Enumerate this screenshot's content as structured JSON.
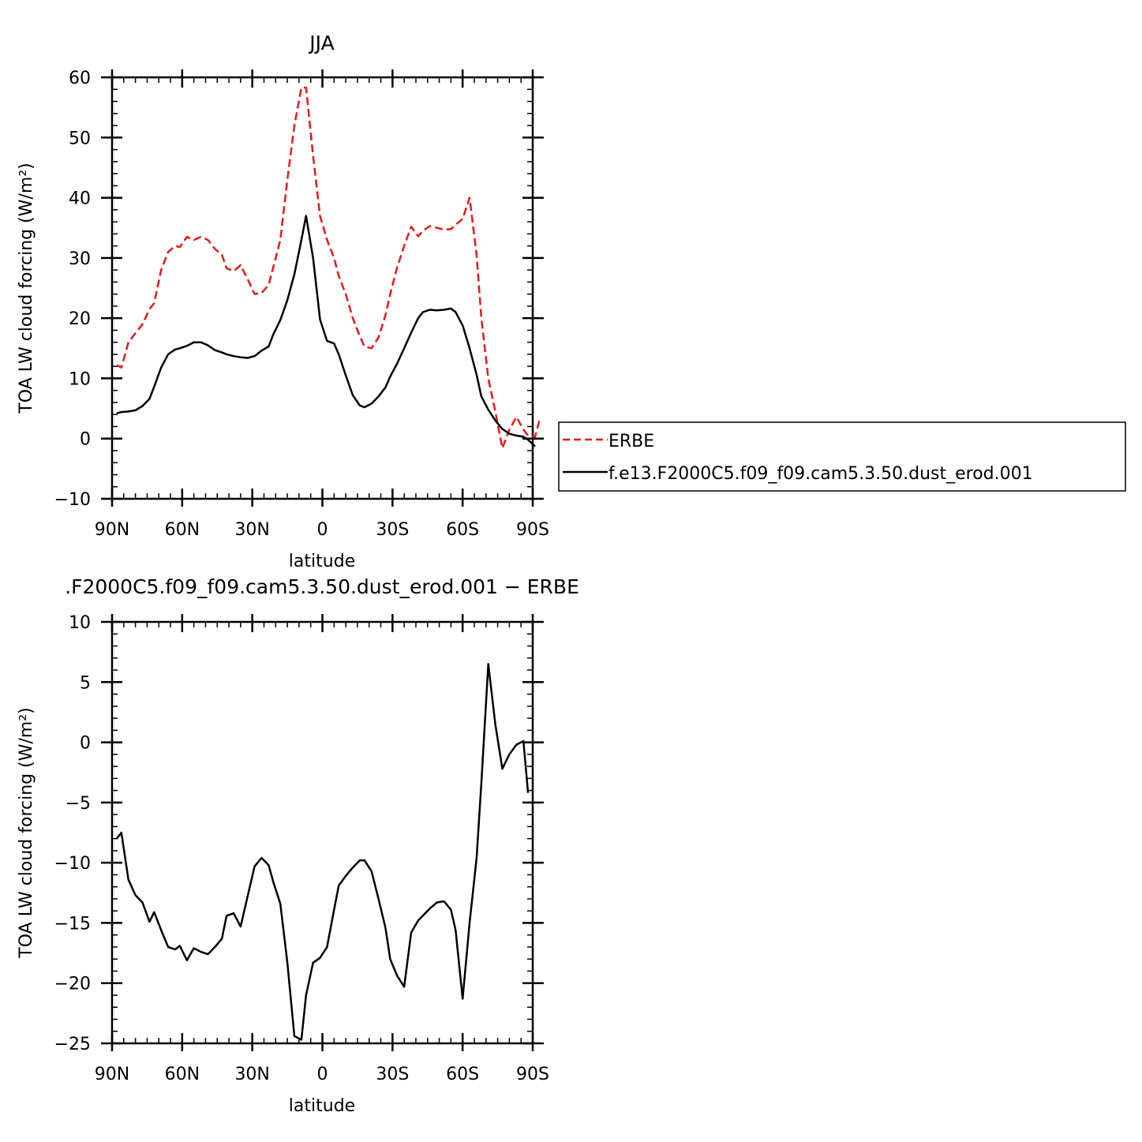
{
  "chart_data": [
    {
      "type": "line",
      "title": "JJA",
      "xlabel": "latitude",
      "ylabel": "TOA LW cloud forcing (W/m²)",
      "xlim": [
        90,
        -90
      ],
      "ylim": [
        -10,
        60
      ],
      "x_ticks": [
        {
          "value": 90,
          "label": "90N"
        },
        {
          "value": 60,
          "label": "60N"
        },
        {
          "value": 30,
          "label": "30N"
        },
        {
          "value": 0,
          "label": "0"
        },
        {
          "value": -30,
          "label": "30S"
        },
        {
          "value": -60,
          "label": "60S"
        },
        {
          "value": -90,
          "label": "90S"
        }
      ],
      "y_ticks": [
        -10,
        0,
        10,
        20,
        30,
        40,
        50,
        60
      ],
      "y_tick_labels": [
        "−10",
        "0",
        "10",
        "20",
        "30",
        "40",
        "50",
        "60"
      ],
      "legend": "right, outside",
      "grid": false,
      "series": [
        {
          "name": "ERBE",
          "color": "#e41a1c",
          "dash": "dashed",
          "points": [
            [
              88,
              12.2
            ],
            [
              86,
              11.8
            ],
            [
              83,
              16.0
            ],
            [
              80,
              17.5
            ],
            [
              77,
              19.0
            ],
            [
              74,
              21.5
            ],
            [
              72,
              22.5
            ],
            [
              69,
              28.0
            ],
            [
              66,
              31.0
            ],
            [
              63,
              32.0
            ],
            [
              61,
              31.8
            ],
            [
              58,
              33.5
            ],
            [
              55,
              33.0
            ],
            [
              52,
              33.5
            ],
            [
              49,
              33.0
            ],
            [
              46,
              31.5
            ],
            [
              43,
              30.5
            ],
            [
              41,
              28.3
            ],
            [
              38,
              27.8
            ],
            [
              35,
              28.8
            ],
            [
              32,
              26.5
            ],
            [
              29,
              24.0
            ],
            [
              26,
              24.2
            ],
            [
              23,
              25.5
            ],
            [
              21,
              28.5
            ],
            [
              18,
              33.0
            ],
            [
              15,
              43.0
            ],
            [
              12,
              52.0
            ],
            [
              9,
              58.3
            ],
            [
              7,
              58.3
            ],
            [
              4,
              47.0
            ],
            [
              1,
              37.0
            ],
            [
              -2,
              33.0
            ],
            [
              -5,
              30.0
            ],
            [
              -7,
              27.0
            ],
            [
              -10,
              24.0
            ],
            [
              -13,
              20.0
            ],
            [
              -16,
              17.0
            ],
            [
              -18,
              15.3
            ],
            [
              -21,
              15.0
            ],
            [
              -24,
              16.8
            ],
            [
              -27,
              20.5
            ],
            [
              -29,
              24.0
            ],
            [
              -32,
              28.5
            ],
            [
              -35,
              32.0
            ],
            [
              -38,
              35.2
            ],
            [
              -41,
              33.6
            ],
            [
              -43,
              34.5
            ],
            [
              -46,
              35.3
            ],
            [
              -49,
              35.0
            ],
            [
              -52,
              34.7
            ],
            [
              -55,
              34.8
            ],
            [
              -57,
              35.5
            ],
            [
              -60,
              36.5
            ],
            [
              -63,
              40.0
            ],
            [
              -66,
              30.5
            ],
            [
              -68,
              20.0
            ],
            [
              -71,
              10.0
            ],
            [
              -74,
              4.5
            ],
            [
              -77,
              -1.6
            ],
            [
              -80,
              1.5
            ],
            [
              -83,
              3.6
            ],
            [
              -86,
              1.5
            ],
            [
              -88,
              0.5
            ],
            [
              -91,
              0.3
            ],
            [
              -93,
              3.2
            ]
          ]
        },
        {
          "name": "f.e13.F2000C5.f09_f09.cam5.3.50.dust_erod.001",
          "color": "#000000",
          "dash": "solid",
          "points": [
            [
              88,
              4.2
            ],
            [
              86,
              4.4
            ],
            [
              83,
              4.5
            ],
            [
              80,
              4.7
            ],
            [
              77,
              5.4
            ],
            [
              74,
              6.6
            ],
            [
              72,
              8.6
            ],
            [
              69,
              11.8
            ],
            [
              66,
              14.0
            ],
            [
              63,
              14.8
            ],
            [
              61,
              15.0
            ],
            [
              58,
              15.4
            ],
            [
              55,
              16.0
            ],
            [
              52,
              16.0
            ],
            [
              49,
              15.5
            ],
            [
              46,
              14.7
            ],
            [
              43,
              14.3
            ],
            [
              41,
              14.0
            ],
            [
              38,
              13.7
            ],
            [
              35,
              13.5
            ],
            [
              32,
              13.4
            ],
            [
              29,
              13.7
            ],
            [
              26,
              14.6
            ],
            [
              23,
              15.3
            ],
            [
              21,
              17.3
            ],
            [
              18,
              19.7
            ],
            [
              15,
              23.0
            ],
            [
              12,
              27.3
            ],
            [
              9,
              33.0
            ],
            [
              7,
              37.0
            ],
            [
              4,
              30.0
            ],
            [
              1,
              19.8
            ],
            [
              -2,
              16.2
            ],
            [
              -5,
              15.8
            ],
            [
              -7,
              14.0
            ],
            [
              -10,
              10.5
            ],
            [
              -13,
              7.2
            ],
            [
              -16,
              5.5
            ],
            [
              -18,
              5.2
            ],
            [
              -21,
              5.8
            ],
            [
              -24,
              7.0
            ],
            [
              -27,
              8.5
            ],
            [
              -29,
              10.3
            ],
            [
              -32,
              12.5
            ],
            [
              -35,
              15.0
            ],
            [
              -38,
              17.6
            ],
            [
              -41,
              20.0
            ],
            [
              -43,
              21.0
            ],
            [
              -46,
              21.4
            ],
            [
              -49,
              21.3
            ],
            [
              -52,
              21.4
            ],
            [
              -55,
              21.6
            ],
            [
              -57,
              21.0
            ],
            [
              -60,
              18.8
            ],
            [
              -63,
              15.0
            ],
            [
              -66,
              10.6
            ],
            [
              -68,
              7.0
            ],
            [
              -71,
              4.8
            ],
            [
              -74,
              3.0
            ],
            [
              -77,
              1.6
            ],
            [
              -80,
              0.8
            ],
            [
              -83,
              0.5
            ],
            [
              -86,
              0.3
            ],
            [
              -88,
              -0.2
            ],
            [
              -91,
              -1.3
            ]
          ]
        }
      ]
    },
    {
      "type": "line",
      "title": ".F2000C5.f09_f09.cam5.3.50.dust_erod.001 − ERBE",
      "xlabel": "latitude",
      "ylabel": "TOA LW cloud forcing (W/m²)",
      "xlim": [
        90,
        -90
      ],
      "ylim": [
        -25,
        10
      ],
      "x_ticks": [
        {
          "value": 90,
          "label": "90N"
        },
        {
          "value": 60,
          "label": "60N"
        },
        {
          "value": 30,
          "label": "30N"
        },
        {
          "value": 0,
          "label": "0"
        },
        {
          "value": -30,
          "label": "30S"
        },
        {
          "value": -60,
          "label": "60S"
        },
        {
          "value": -90,
          "label": "90S"
        }
      ],
      "y_ticks": [
        -25,
        -20,
        -15,
        -10,
        -5,
        0,
        5,
        10
      ],
      "y_tick_labels": [
        "−25",
        "−20",
        "−15",
        "−10",
        "−5",
        "0",
        "5",
        "10"
      ],
      "grid": false,
      "series": [
        {
          "color": "#000000",
          "dash": "solid",
          "points": [
            [
              88,
              -8.0
            ],
            [
              86,
              -7.5
            ],
            [
              83,
              -11.4
            ],
            [
              80,
              -12.7
            ],
            [
              77,
              -13.3
            ],
            [
              74,
              -14.9
            ],
            [
              72,
              -14.1
            ],
            [
              69,
              -15.6
            ],
            [
              66,
              -17.0
            ],
            [
              63,
              -17.2
            ],
            [
              61,
              -16.9
            ],
            [
              58,
              -18.1
            ],
            [
              55,
              -17.1
            ],
            [
              52,
              -17.4
            ],
            [
              49,
              -17.6
            ],
            [
              46,
              -17.0
            ],
            [
              43,
              -16.3
            ],
            [
              41,
              -14.4
            ],
            [
              38,
              -14.2
            ],
            [
              35,
              -15.3
            ],
            [
              32,
              -12.8
            ],
            [
              29,
              -10.3
            ],
            [
              26,
              -9.6
            ],
            [
              23,
              -10.2
            ],
            [
              21,
              -11.6
            ],
            [
              18,
              -13.4
            ],
            [
              15,
              -18.3
            ],
            [
              12,
              -24.4
            ],
            [
              9,
              -24.7
            ],
            [
              7,
              -21.0
            ],
            [
              4,
              -18.3
            ],
            [
              1,
              -17.9
            ],
            [
              -2,
              -17.0
            ],
            [
              -5,
              -13.9
            ],
            [
              -7,
              -11.9
            ],
            [
              -10,
              -11.1
            ],
            [
              -13,
              -10.4
            ],
            [
              -16,
              -9.8
            ],
            [
              -18,
              -9.8
            ],
            [
              -21,
              -10.7
            ],
            [
              -24,
              -13.0
            ],
            [
              -27,
              -15.4
            ],
            [
              -29,
              -18.0
            ],
            [
              -32,
              -19.4
            ],
            [
              -35,
              -20.3
            ],
            [
              -38,
              -15.8
            ],
            [
              -41,
              -14.8
            ],
            [
              -43,
              -14.4
            ],
            [
              -46,
              -13.8
            ],
            [
              -49,
              -13.3
            ],
            [
              -52,
              -13.2
            ],
            [
              -55,
              -13.9
            ],
            [
              -57,
              -15.6
            ],
            [
              -60,
              -21.3
            ],
            [
              -63,
              -15.0
            ],
            [
              -66,
              -9.6
            ],
            [
              -68,
              -3.4
            ],
            [
              -71,
              6.5
            ],
            [
              -74,
              1.5
            ],
            [
              -77,
              -2.2
            ],
            [
              -80,
              -1.0
            ],
            [
              -83,
              -0.2
            ],
            [
              -86,
              0.1
            ],
            [
              -88,
              -4.2
            ]
          ]
        }
      ]
    }
  ]
}
